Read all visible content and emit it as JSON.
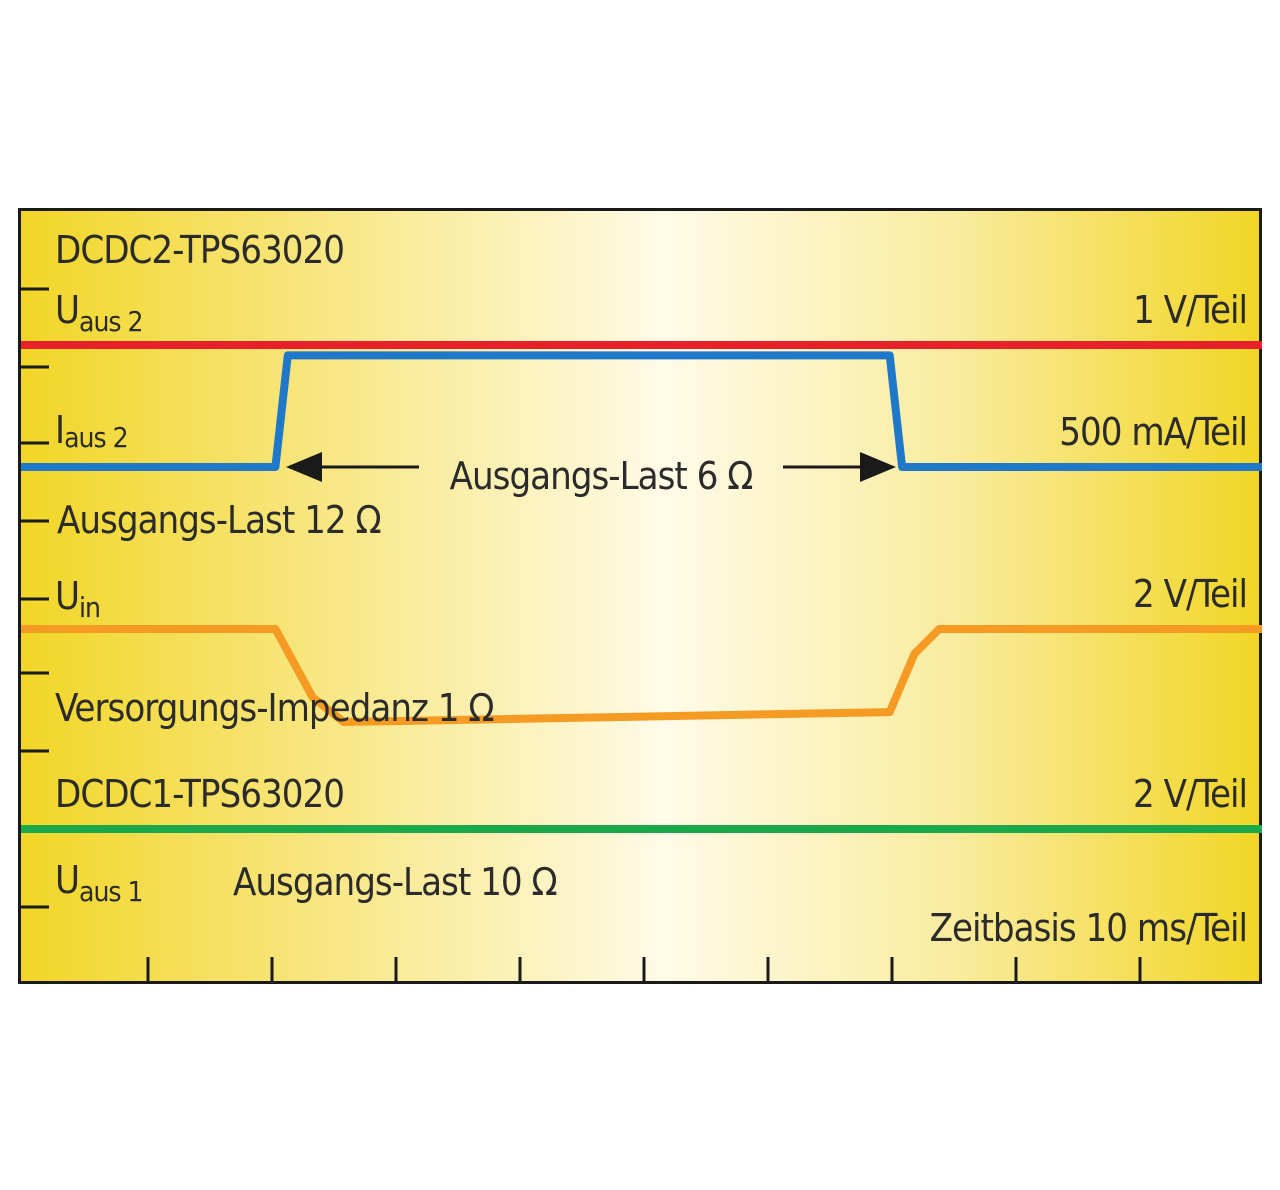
{
  "colors": {
    "u_aus2": "#e8202a",
    "i_aus2": "#1f78c8",
    "u_in": "#f59a23",
    "u_aus1": "#1aa84a",
    "background_edge": "#f2d626",
    "background_center": "#fffbe8"
  },
  "chart_data": {
    "type": "line",
    "time_divisions": 10,
    "series": [
      {
        "name": "U",
        "sub": "aus 2",
        "scale": "1 V/Teil",
        "color": "#e8202a",
        "x": [
          0,
          10
        ],
        "y": [
          0,
          0
        ]
      },
      {
        "name": "I",
        "sub": "aus 2",
        "scale": "500 mA/Teil",
        "color": "#1f78c8",
        "x": [
          0,
          2.05,
          2.15,
          7.0,
          7.1,
          10
        ],
        "y": [
          0,
          0,
          0.9,
          0.9,
          0,
          0
        ]
      },
      {
        "name": "U",
        "sub": "in",
        "scale": "2 V/Teil",
        "color": "#f59a23",
        "x": [
          0,
          2.05,
          2.35,
          2.6,
          7.0,
          7.2,
          7.4,
          10
        ],
        "y": [
          0,
          0,
          -0.55,
          -0.75,
          -0.67,
          -0.2,
          0,
          0
        ]
      },
      {
        "name": "U",
        "sub": "aus 1",
        "scale": "2 V/Teil",
        "color": "#1aa84a",
        "x": [
          0,
          10
        ],
        "y": [
          0,
          0
        ]
      }
    ],
    "annotations": {
      "dcdc2": "DCDC2-TPS63020",
      "dcdc1": "DCDC1-TPS63020",
      "load_12": "Ausgangs-Last 12 Ω",
      "load_6": "Ausgangs-Last 6 Ω",
      "impedance": "Versorgungs-Impedanz 1 Ω",
      "load_10": "Ausgangs-Last 10 Ω",
      "timebase": "Zeitbasis 10 ms/Teil"
    }
  }
}
